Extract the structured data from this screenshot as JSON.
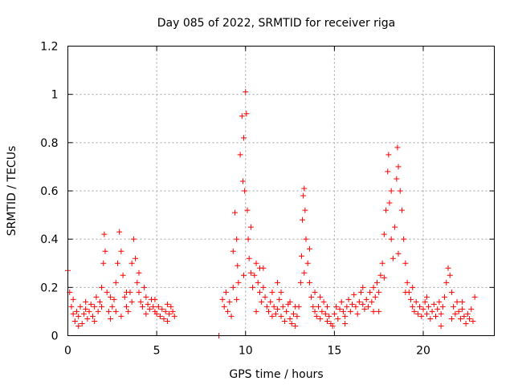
{
  "chart_data": {
    "type": "scatter",
    "title": "Day 085 of 2022, SRMTID for receiver riga",
    "xlabel": "GPS time / hours",
    "ylabel": "SRMTID / TECUs",
    "xlim": [
      0,
      24
    ],
    "ylim": [
      0,
      1.2
    ],
    "xticks": [
      0,
      5,
      10,
      15,
      20
    ],
    "xtick_labels": [
      "0",
      "5",
      "10",
      "15",
      "20"
    ],
    "yticks": [
      0,
      0.2,
      0.4,
      0.6,
      0.8,
      1.0,
      1.2
    ],
    "ytick_labels": [
      "0",
      "0.2",
      "0.4",
      "0.6",
      "0.8",
      "1",
      "1.2"
    ],
    "grid": true,
    "marker": "+",
    "color": "#ff0000",
    "series": [
      {
        "name": "SRMTID",
        "points": [
          [
            0.0,
            0.27
          ],
          [
            0.1,
            0.18
          ],
          [
            0.2,
            0.12
          ],
          [
            0.3,
            0.09
          ],
          [
            0.4,
            0.06
          ],
          [
            0.5,
            0.1
          ],
          [
            0.6,
            0.08
          ],
          [
            0.7,
            0.12
          ],
          [
            0.8,
            0.05
          ],
          [
            0.9,
            0.09
          ],
          [
            1.0,
            0.11
          ],
          [
            1.1,
            0.07
          ],
          [
            1.2,
            0.1
          ],
          [
            1.3,
            0.13
          ],
          [
            1.4,
            0.08
          ],
          [
            1.5,
            0.12
          ],
          [
            1.6,
            0.16
          ],
          [
            1.7,
            0.1
          ],
          [
            1.8,
            0.14
          ],
          [
            1.9,
            0.2
          ],
          [
            2.0,
            0.3
          ],
          [
            2.05,
            0.42
          ],
          [
            2.1,
            0.35
          ],
          [
            2.2,
            0.18
          ],
          [
            2.3,
            0.1
          ],
          [
            2.4,
            0.07
          ],
          [
            2.5,
            0.12
          ],
          [
            2.6,
            0.15
          ],
          [
            2.7,
            0.22
          ],
          [
            2.8,
            0.3
          ],
          [
            2.9,
            0.43
          ],
          [
            3.0,
            0.35
          ],
          [
            3.1,
            0.25
          ],
          [
            3.2,
            0.16
          ],
          [
            3.3,
            0.12
          ],
          [
            3.4,
            0.1
          ],
          [
            3.5,
            0.18
          ],
          [
            3.6,
            0.3
          ],
          [
            3.7,
            0.4
          ],
          [
            3.8,
            0.32
          ],
          [
            3.9,
            0.22
          ],
          [
            4.0,
            0.18
          ],
          [
            4.1,
            0.14
          ],
          [
            4.2,
            0.12
          ],
          [
            4.3,
            0.2
          ],
          [
            4.4,
            0.16
          ],
          [
            4.5,
            0.13
          ],
          [
            4.6,
            0.11
          ],
          [
            4.7,
            0.15
          ],
          [
            4.8,
            0.12
          ],
          [
            4.9,
            0.1
          ],
          [
            5.0,
            0.09
          ],
          [
            5.1,
            0.12
          ],
          [
            5.2,
            0.08
          ],
          [
            5.3,
            0.11
          ],
          [
            5.4,
            0.07
          ],
          [
            5.5,
            0.1
          ],
          [
            5.6,
            0.13
          ],
          [
            5.7,
            0.09
          ],
          [
            5.8,
            0.12
          ],
          [
            5.9,
            0.1
          ],
          [
            6.0,
            0.08
          ],
          [
            0.3,
            0.15
          ],
          [
            0.6,
            0.04
          ],
          [
            1.0,
            0.14
          ],
          [
            1.5,
            0.06
          ],
          [
            2.4,
            0.16
          ],
          [
            3.0,
            0.08
          ],
          [
            3.6,
            0.14
          ],
          [
            4.4,
            0.09
          ],
          [
            4.9,
            0.15
          ],
          [
            5.6,
            0.06
          ],
          [
            1.9,
            0.12
          ],
          [
            2.7,
            0.1
          ],
          [
            3.3,
            0.18
          ],
          [
            4.0,
            0.26
          ],
          [
            8.5,
            0.0
          ],
          [
            8.7,
            0.15
          ],
          [
            8.8,
            0.12
          ],
          [
            8.9,
            0.18
          ],
          [
            9.0,
            0.1
          ],
          [
            9.1,
            0.14
          ],
          [
            9.2,
            0.08
          ],
          [
            9.3,
            0.2
          ],
          [
            9.4,
            0.51
          ],
          [
            9.5,
            0.4
          ],
          [
            9.55,
            0.29
          ],
          [
            9.6,
            0.22
          ],
          [
            9.7,
            0.75
          ],
          [
            9.8,
            0.91
          ],
          [
            9.85,
            0.64
          ],
          [
            9.9,
            0.82
          ],
          [
            9.95,
            0.6
          ],
          [
            10.0,
            1.01
          ],
          [
            10.05,
            0.92
          ],
          [
            10.1,
            0.52
          ],
          [
            10.15,
            0.4
          ],
          [
            10.2,
            0.32
          ],
          [
            10.3,
            0.26
          ],
          [
            10.4,
            0.2
          ],
          [
            10.5,
            0.25
          ],
          [
            10.6,
            0.3
          ],
          [
            10.7,
            0.22
          ],
          [
            10.8,
            0.18
          ],
          [
            10.9,
            0.14
          ],
          [
            11.0,
            0.2
          ],
          [
            11.1,
            0.16
          ],
          [
            11.2,
            0.12
          ],
          [
            11.3,
            0.1
          ],
          [
            11.4,
            0.14
          ],
          [
            11.5,
            0.18
          ],
          [
            11.6,
            0.12
          ],
          [
            11.7,
            0.09
          ],
          [
            11.8,
            0.11
          ],
          [
            11.9,
            0.15
          ],
          [
            12.0,
            0.08
          ],
          [
            12.1,
            0.12
          ],
          [
            12.2,
            0.06
          ],
          [
            12.3,
            0.1
          ],
          [
            12.4,
            0.13
          ],
          [
            12.5,
            0.07
          ],
          [
            12.6,
            0.05
          ],
          [
            12.7,
            0.09
          ],
          [
            12.8,
            0.04
          ],
          [
            12.9,
            0.08
          ],
          [
            13.0,
            0.12
          ],
          [
            13.1,
            0.22
          ],
          [
            13.15,
            0.33
          ],
          [
            13.2,
            0.48
          ],
          [
            13.25,
            0.58
          ],
          [
            13.3,
            0.61
          ],
          [
            13.35,
            0.52
          ],
          [
            13.4,
            0.4
          ],
          [
            13.5,
            0.3
          ],
          [
            13.6,
            0.22
          ],
          [
            13.7,
            0.16
          ],
          [
            13.8,
            0.12
          ],
          [
            13.9,
            0.1
          ],
          [
            14.0,
            0.08
          ],
          [
            14.1,
            0.12
          ],
          [
            14.2,
            0.07
          ],
          [
            14.3,
            0.1
          ],
          [
            14.4,
            0.14
          ],
          [
            14.5,
            0.09
          ],
          [
            14.6,
            0.12
          ],
          [
            14.7,
            0.08
          ],
          [
            14.8,
            0.05
          ],
          [
            14.9,
            0.04
          ],
          [
            15.0,
            0.09
          ],
          [
            15.1,
            0.12
          ],
          [
            15.2,
            0.07
          ],
          [
            15.3,
            0.11
          ],
          [
            15.4,
            0.14
          ],
          [
            15.5,
            0.1
          ],
          [
            15.6,
            0.08
          ],
          [
            15.7,
            0.12
          ],
          [
            15.8,
            0.15
          ],
          [
            15.9,
            0.1
          ],
          [
            16.0,
            0.13
          ],
          [
            16.1,
            0.17
          ],
          [
            16.2,
            0.12
          ],
          [
            16.3,
            0.09
          ],
          [
            16.4,
            0.14
          ],
          [
            16.5,
            0.18
          ],
          [
            16.6,
            0.13
          ],
          [
            16.7,
            0.11
          ],
          [
            16.8,
            0.15
          ],
          [
            16.9,
            0.12
          ],
          [
            17.0,
            0.18
          ],
          [
            17.1,
            0.14
          ],
          [
            17.2,
            0.2
          ],
          [
            17.3,
            0.16
          ],
          [
            17.4,
            0.22
          ],
          [
            17.5,
            0.18
          ],
          [
            17.6,
            0.25
          ],
          [
            17.7,
            0.3
          ],
          [
            17.8,
            0.42
          ],
          [
            17.9,
            0.52
          ],
          [
            18.0,
            0.68
          ],
          [
            18.05,
            0.75
          ],
          [
            18.1,
            0.55
          ],
          [
            18.2,
            0.4
          ],
          [
            18.3,
            0.32
          ],
          [
            18.4,
            0.45
          ],
          [
            18.5,
            0.65
          ],
          [
            18.55,
            0.78
          ],
          [
            18.6,
            0.7
          ],
          [
            18.7,
            0.6
          ],
          [
            18.8,
            0.52
          ],
          [
            18.9,
            0.4
          ],
          [
            19.0,
            0.3
          ],
          [
            19.1,
            0.22
          ],
          [
            19.2,
            0.18
          ],
          [
            19.3,
            0.15
          ],
          [
            19.4,
            0.12
          ],
          [
            19.5,
            0.1
          ],
          [
            19.6,
            0.14
          ],
          [
            19.7,
            0.09
          ],
          [
            19.8,
            0.12
          ],
          [
            19.9,
            0.08
          ],
          [
            20.0,
            0.11
          ],
          [
            20.1,
            0.14
          ],
          [
            20.2,
            0.09
          ],
          [
            20.3,
            0.12
          ],
          [
            20.4,
            0.07
          ],
          [
            20.5,
            0.1
          ],
          [
            20.6,
            0.13
          ],
          [
            20.7,
            0.08
          ],
          [
            20.8,
            0.11
          ],
          [
            20.9,
            0.14
          ],
          [
            21.0,
            0.09
          ],
          [
            21.1,
            0.12
          ],
          [
            21.2,
            0.16
          ],
          [
            21.3,
            0.22
          ],
          [
            21.4,
            0.28
          ],
          [
            21.5,
            0.25
          ],
          [
            21.6,
            0.18
          ],
          [
            21.7,
            0.12
          ],
          [
            21.8,
            0.09
          ],
          [
            21.9,
            0.14
          ],
          [
            22.0,
            0.1
          ],
          [
            22.1,
            0.07
          ],
          [
            22.2,
            0.11
          ],
          [
            22.3,
            0.08
          ],
          [
            22.4,
            0.05
          ],
          [
            22.5,
            0.09
          ],
          [
            22.6,
            0.07
          ],
          [
            22.7,
            0.11
          ],
          [
            22.8,
            0.06
          ],
          [
            22.9,
            0.16
          ],
          [
            9.3,
            0.35
          ],
          [
            9.5,
            0.15
          ],
          [
            9.9,
            0.25
          ],
          [
            10.3,
            0.45
          ],
          [
            10.6,
            0.1
          ],
          [
            11.0,
            0.28
          ],
          [
            11.5,
            0.08
          ],
          [
            12.0,
            0.18
          ],
          [
            12.5,
            0.14
          ],
          [
            13.3,
            0.26
          ],
          [
            13.6,
            0.36
          ],
          [
            14.2,
            0.16
          ],
          [
            15.6,
            0.05
          ],
          [
            16.6,
            0.2
          ],
          [
            17.2,
            0.1
          ],
          [
            17.8,
            0.24
          ],
          [
            18.2,
            0.6
          ],
          [
            18.6,
            0.34
          ],
          [
            19.0,
            0.18
          ],
          [
            19.4,
            0.2
          ],
          [
            20.2,
            0.16
          ],
          [
            21.0,
            0.04
          ],
          [
            21.6,
            0.07
          ],
          [
            22.2,
            0.14
          ],
          [
            11.8,
            0.22
          ],
          [
            12.8,
            0.12
          ],
          [
            13.9,
            0.18
          ],
          [
            14.6,
            0.06
          ],
          [
            10.8,
            0.28
          ],
          [
            17.5,
            0.1
          ]
        ]
      }
    ]
  }
}
